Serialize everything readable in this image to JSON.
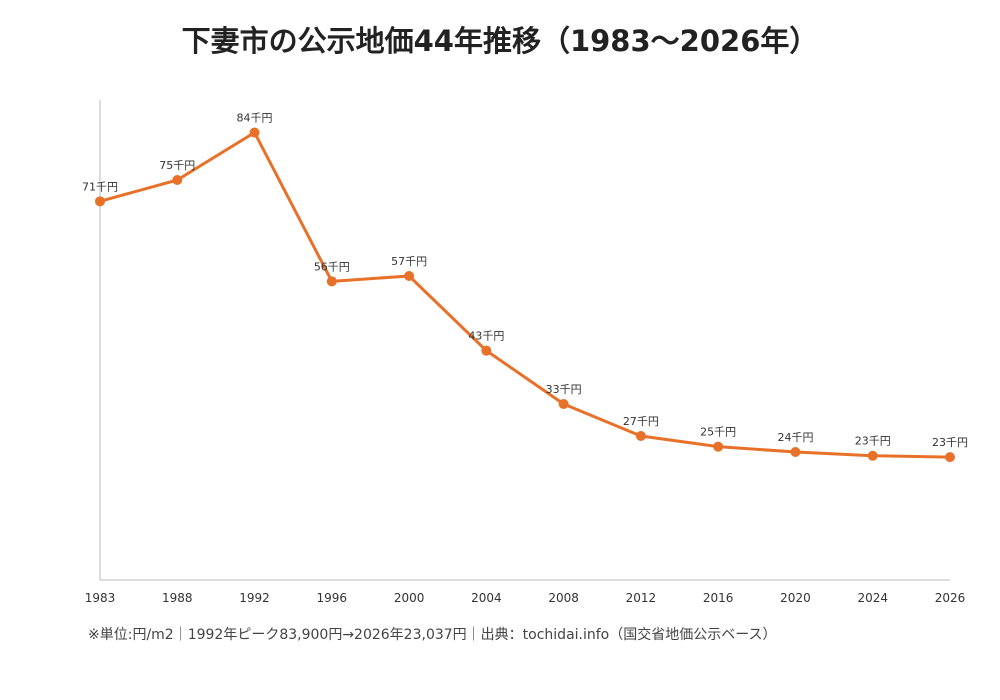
{
  "title": "下妻市の公示地価44年推移（1983〜2026年）",
  "footnote": "※単位:円/m2｜1992年ピーク83,900円→2026年23,037円｜出典：tochidai.info（国交省地価公示ベース）",
  "colors": {
    "line": "#e8712a",
    "axis": "#bbbbbb",
    "label": "#333333"
  },
  "chart_data": {
    "type": "line",
    "title": "下妻市の公示地価44年推移（1983〜2026年）",
    "xlabel": "",
    "ylabel": "",
    "grid": false,
    "legend": "none",
    "ylim": [
      0,
      90000
    ],
    "categories": [
      "1983",
      "1988",
      "1992",
      "1996",
      "2000",
      "2004",
      "2008",
      "2012",
      "2016",
      "2020",
      "2024",
      "2026"
    ],
    "series": [
      {
        "values": [
          71000,
          75000,
          83900,
          56000,
          57000,
          43000,
          33000,
          27000,
          25000,
          24000,
          23300,
          23037
        ],
        "data_labels": [
          "71千円",
          "75千円",
          "84千円",
          "56千円",
          "57千円",
          "43千円",
          "33千円",
          "27千円",
          "25千円",
          "24千円",
          "23千円",
          "23千円"
        ]
      }
    ]
  }
}
